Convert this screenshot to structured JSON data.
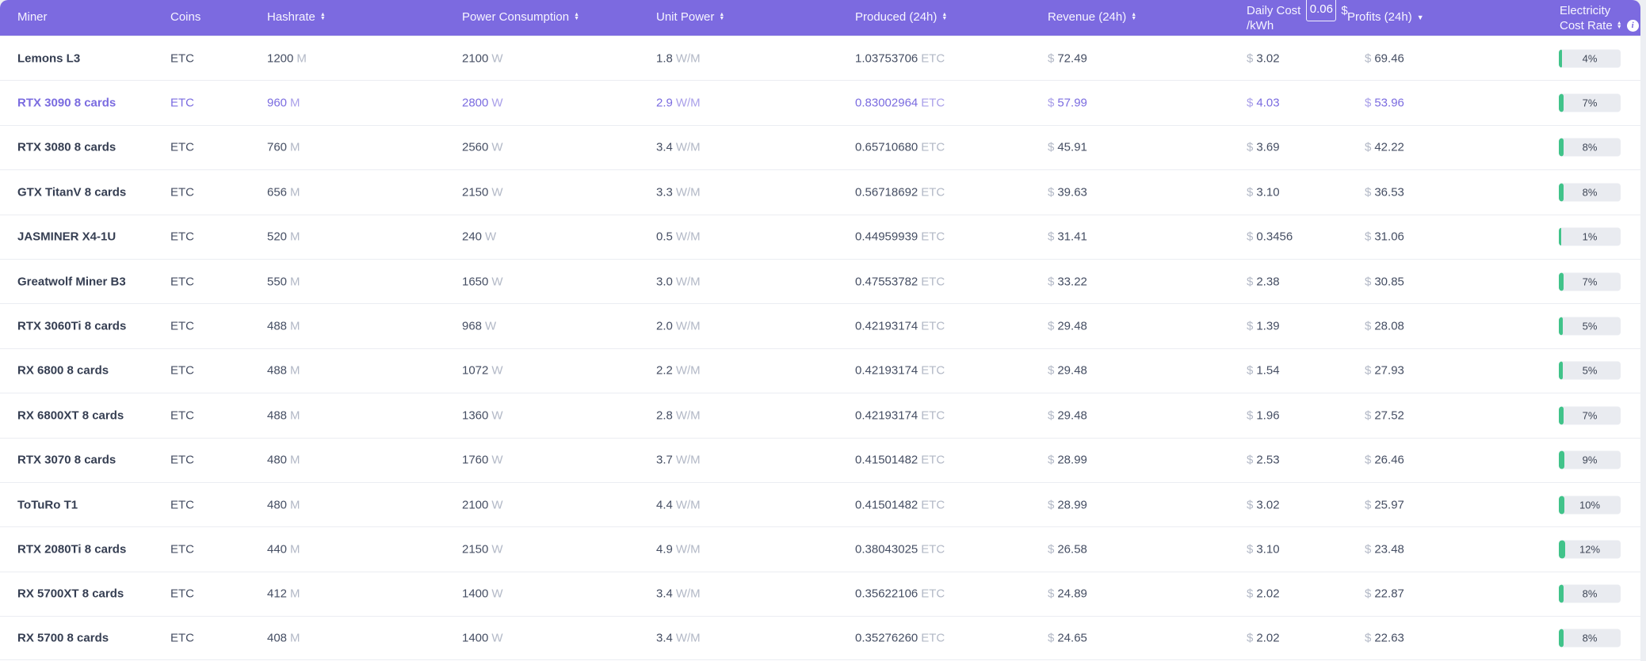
{
  "header": {
    "miner": "Miner",
    "coins": "Coins",
    "hashrate": "Hashrate",
    "power": "Power Consumption",
    "unit_power": "Unit Power",
    "produced": "Produced (24h)",
    "revenue": "Revenue (24h)",
    "daily_cost_label": "Daily Cost",
    "daily_cost_input_value": "0.06",
    "daily_cost_currency": "$",
    "daily_cost_unit": "/kWh",
    "profits": "Profits (24h)",
    "electricity_line1": "Electricity",
    "electricity_line2": "Cost Rate"
  },
  "units": {
    "hashrate": "M",
    "power": "W",
    "unit_power": "W/M",
    "produced": "ETC",
    "currency": "$"
  },
  "colors": {
    "header_bg": "#7c6ae0",
    "highlight_text": "#7b6ce0",
    "rate_bar_fill": "#41c38a",
    "rate_bar_bg": "#e9ebf0"
  },
  "rows": [
    {
      "miner": "Lemons L3",
      "coin": "ETC",
      "hashrate": "1200",
      "power": "2100",
      "unit_power": "1.8",
      "produced": "1.03753706",
      "revenue": "72.49",
      "daily_cost": "3.02",
      "profits": "69.46",
      "rate": "4%",
      "rate_pct": 4,
      "highlighted": false
    },
    {
      "miner": "RTX 3090 8 cards",
      "coin": "ETC",
      "hashrate": "960",
      "power": "2800",
      "unit_power": "2.9",
      "produced": "0.83002964",
      "revenue": "57.99",
      "daily_cost": "4.03",
      "profits": "53.96",
      "rate": "7%",
      "rate_pct": 7,
      "highlighted": true
    },
    {
      "miner": "RTX 3080 8 cards",
      "coin": "ETC",
      "hashrate": "760",
      "power": "2560",
      "unit_power": "3.4",
      "produced": "0.65710680",
      "revenue": "45.91",
      "daily_cost": "3.69",
      "profits": "42.22",
      "rate": "8%",
      "rate_pct": 8,
      "highlighted": false
    },
    {
      "miner": "GTX TitanV 8 cards",
      "coin": "ETC",
      "hashrate": "656",
      "power": "2150",
      "unit_power": "3.3",
      "produced": "0.56718692",
      "revenue": "39.63",
      "daily_cost": "3.10",
      "profits": "36.53",
      "rate": "8%",
      "rate_pct": 8,
      "highlighted": false
    },
    {
      "miner": "JASMINER X4-1U",
      "coin": "ETC",
      "hashrate": "520",
      "power": "240",
      "unit_power": "0.5",
      "produced": "0.44959939",
      "revenue": "31.41",
      "daily_cost": "0.3456",
      "profits": "31.06",
      "rate": "1%",
      "rate_pct": 1,
      "highlighted": false
    },
    {
      "miner": "Greatwolf Miner B3",
      "coin": "ETC",
      "hashrate": "550",
      "power": "1650",
      "unit_power": "3.0",
      "produced": "0.47553782",
      "revenue": "33.22",
      "daily_cost": "2.38",
      "profits": "30.85",
      "rate": "7%",
      "rate_pct": 7,
      "highlighted": false
    },
    {
      "miner": "RTX 3060Ti 8 cards",
      "coin": "ETC",
      "hashrate": "488",
      "power": "968",
      "unit_power": "2.0",
      "produced": "0.42193174",
      "revenue": "29.48",
      "daily_cost": "1.39",
      "profits": "28.08",
      "rate": "5%",
      "rate_pct": 5,
      "highlighted": false
    },
    {
      "miner": "RX 6800 8 cards",
      "coin": "ETC",
      "hashrate": "488",
      "power": "1072",
      "unit_power": "2.2",
      "produced": "0.42193174",
      "revenue": "29.48",
      "daily_cost": "1.54",
      "profits": "27.93",
      "rate": "5%",
      "rate_pct": 5,
      "highlighted": false
    },
    {
      "miner": "RX 6800XT 8 cards",
      "coin": "ETC",
      "hashrate": "488",
      "power": "1360",
      "unit_power": "2.8",
      "produced": "0.42193174",
      "revenue": "29.48",
      "daily_cost": "1.96",
      "profits": "27.52",
      "rate": "7%",
      "rate_pct": 7,
      "highlighted": false
    },
    {
      "miner": "RTX 3070 8 cards",
      "coin": "ETC",
      "hashrate": "480",
      "power": "1760",
      "unit_power": "3.7",
      "produced": "0.41501482",
      "revenue": "28.99",
      "daily_cost": "2.53",
      "profits": "26.46",
      "rate": "9%",
      "rate_pct": 9,
      "highlighted": false
    },
    {
      "miner": "ToTuRo T1",
      "coin": "ETC",
      "hashrate": "480",
      "power": "2100",
      "unit_power": "4.4",
      "produced": "0.41501482",
      "revenue": "28.99",
      "daily_cost": "3.02",
      "profits": "25.97",
      "rate": "10%",
      "rate_pct": 10,
      "highlighted": false
    },
    {
      "miner": "RTX 2080Ti 8 cards",
      "coin": "ETC",
      "hashrate": "440",
      "power": "2150",
      "unit_power": "4.9",
      "produced": "0.38043025",
      "revenue": "26.58",
      "daily_cost": "3.10",
      "profits": "23.48",
      "rate": "12%",
      "rate_pct": 12,
      "highlighted": false
    },
    {
      "miner": "RX 5700XT 8 cards",
      "coin": "ETC",
      "hashrate": "412",
      "power": "1400",
      "unit_power": "3.4",
      "produced": "0.35622106",
      "revenue": "24.89",
      "daily_cost": "2.02",
      "profits": "22.87",
      "rate": "8%",
      "rate_pct": 8,
      "highlighted": false
    },
    {
      "miner": "RX 5700 8 cards",
      "coin": "ETC",
      "hashrate": "408",
      "power": "1400",
      "unit_power": "3.4",
      "produced": "0.35276260",
      "revenue": "24.65",
      "daily_cost": "2.02",
      "profits": "22.63",
      "rate": "8%",
      "rate_pct": 8,
      "highlighted": false
    }
  ]
}
